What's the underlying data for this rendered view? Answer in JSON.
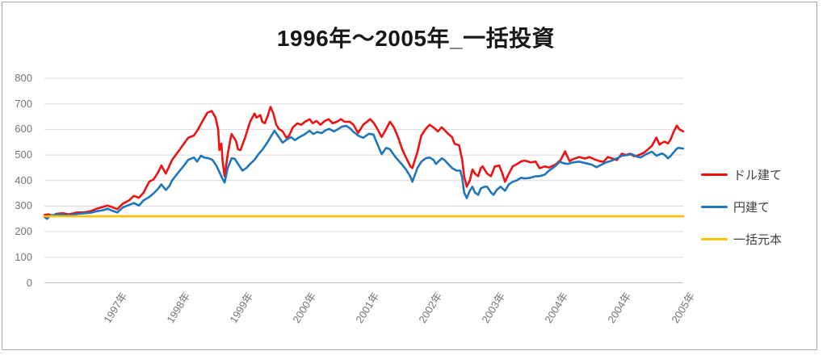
{
  "title": "1996年〜2005年_一括投資",
  "colors": {
    "grid": "#d9d9d9",
    "axis": "#bfbfbf",
    "tick_text": "#757575",
    "title_text": "#171717",
    "legend_text": "#3f3f3f",
    "frame_border": "#a6a6a6",
    "series_dollar": "#ed1111",
    "series_yen": "#2076bc",
    "series_principal": "#ffc000"
  },
  "chart_data": {
    "type": "line",
    "title": "1996年〜2005年_一括投資",
    "xlabel": "",
    "ylabel": "",
    "ylim": [
      0,
      800
    ],
    "y_ticks": [
      800,
      700,
      600,
      500,
      400,
      300,
      200,
      100,
      0
    ],
    "x_tick_labels": [
      "1997年",
      "1998年",
      "1999年",
      "2000年",
      "2001年",
      "2002年",
      "2003年",
      "2004年",
      "2004年",
      "2005年"
    ],
    "x_tick_pos_pct": [
      11.1,
      21.0,
      30.8,
      40.7,
      50.6,
      60.4,
      70.3,
      80.2,
      90.0,
      100
    ],
    "grid": true,
    "legend_position": "right",
    "series": [
      {
        "key": "dollar",
        "name": "ドル建て",
        "color": "#ed1111",
        "points": [
          [
            0,
            265
          ],
          [
            0.6,
            268
          ],
          [
            1.3,
            262
          ],
          [
            1.9,
            270
          ],
          [
            2.9,
            272
          ],
          [
            3.8,
            268
          ],
          [
            5.1,
            275
          ],
          [
            6.3,
            276
          ],
          [
            7.2,
            280
          ],
          [
            8.2,
            290
          ],
          [
            9.2,
            297
          ],
          [
            9.9,
            302
          ],
          [
            10.6,
            296
          ],
          [
            11.4,
            288
          ],
          [
            12.3,
            310
          ],
          [
            13.3,
            323
          ],
          [
            14,
            340
          ],
          [
            14.8,
            333
          ],
          [
            15.5,
            352
          ],
          [
            16.4,
            395
          ],
          [
            17.1,
            405
          ],
          [
            17.8,
            432
          ],
          [
            18.3,
            459
          ],
          [
            19,
            427
          ],
          [
            20,
            481
          ],
          [
            21.2,
            522
          ],
          [
            22.5,
            567
          ],
          [
            23.4,
            576
          ],
          [
            24,
            598
          ],
          [
            24.7,
            630
          ],
          [
            25.5,
            665
          ],
          [
            26.2,
            672
          ],
          [
            26.8,
            646
          ],
          [
            27.2,
            598
          ],
          [
            27.4,
            519
          ],
          [
            27.7,
            544
          ],
          [
            27.9,
            474
          ],
          [
            28.2,
            417
          ],
          [
            28.7,
            503
          ],
          [
            29.1,
            560
          ],
          [
            29.3,
            582
          ],
          [
            30,
            554
          ],
          [
            30.3,
            522
          ],
          [
            30.7,
            519
          ],
          [
            31.4,
            567
          ],
          [
            32.2,
            630
          ],
          [
            32.9,
            662
          ],
          [
            33.2,
            646
          ],
          [
            33.8,
            656
          ],
          [
            34.1,
            630
          ],
          [
            34.5,
            624
          ],
          [
            35,
            656
          ],
          [
            35.4,
            688
          ],
          [
            35.8,
            665
          ],
          [
            36.3,
            618
          ],
          [
            36.7,
            602
          ],
          [
            37.3,
            592
          ],
          [
            37.9,
            567
          ],
          [
            38.3,
            576
          ],
          [
            38.9,
            608
          ],
          [
            39.6,
            624
          ],
          [
            40.2,
            618
          ],
          [
            40.8,
            630
          ],
          [
            41.5,
            640
          ],
          [
            42,
            624
          ],
          [
            42.6,
            633
          ],
          [
            43.2,
            618
          ],
          [
            43.9,
            633
          ],
          [
            44.5,
            640
          ],
          [
            45.1,
            624
          ],
          [
            45.8,
            630
          ],
          [
            46.4,
            640
          ],
          [
            47,
            630
          ],
          [
            47.8,
            630
          ],
          [
            48.4,
            618
          ],
          [
            49.1,
            586
          ],
          [
            49.9,
            618
          ],
          [
            51,
            640
          ],
          [
            51.6,
            624
          ],
          [
            52.2,
            598
          ],
          [
            52.8,
            570
          ],
          [
            53.5,
            602
          ],
          [
            54.1,
            630
          ],
          [
            54.7,
            608
          ],
          [
            55.4,
            567
          ],
          [
            56,
            522
          ],
          [
            56.6,
            490
          ],
          [
            57.3,
            455
          ],
          [
            57.6,
            449
          ],
          [
            58.4,
            512
          ],
          [
            59,
            576
          ],
          [
            59.7,
            602
          ],
          [
            60.3,
            618
          ],
          [
            60.9,
            608
          ],
          [
            61.6,
            592
          ],
          [
            62.2,
            608
          ],
          [
            62.6,
            598
          ],
          [
            63.2,
            583
          ],
          [
            63.8,
            570
          ],
          [
            64.2,
            544
          ],
          [
            64.9,
            538
          ],
          [
            65.4,
            481
          ],
          [
            65.7,
            417
          ],
          [
            66.1,
            376
          ],
          [
            66.6,
            401
          ],
          [
            67,
            443
          ],
          [
            67.4,
            427
          ],
          [
            67.9,
            417
          ],
          [
            68.3,
            449
          ],
          [
            68.6,
            455
          ],
          [
            69.3,
            427
          ],
          [
            69.9,
            417
          ],
          [
            70.5,
            455
          ],
          [
            71.2,
            459
          ],
          [
            71.7,
            427
          ],
          [
            72.1,
            395
          ],
          [
            72.7,
            427
          ],
          [
            73.3,
            455
          ],
          [
            74,
            465
          ],
          [
            74.6,
            474
          ],
          [
            75.2,
            478
          ],
          [
            76.1,
            471
          ],
          [
            76.9,
            474
          ],
          [
            77.5,
            448
          ],
          [
            78.3,
            455
          ],
          [
            79,
            451
          ],
          [
            80,
            462
          ],
          [
            80.8,
            480
          ],
          [
            81.5,
            514
          ],
          [
            82.2,
            476
          ],
          [
            82.8,
            484
          ],
          [
            83.7,
            492
          ],
          [
            84.6,
            486
          ],
          [
            85.3,
            492
          ],
          [
            86.2,
            482
          ],
          [
            86.9,
            476
          ],
          [
            87.5,
            473
          ],
          [
            88.2,
            492
          ],
          [
            88.9,
            486
          ],
          [
            89.6,
            480
          ],
          [
            90.4,
            505
          ],
          [
            91,
            500
          ],
          [
            91.7,
            505
          ],
          [
            92.3,
            495
          ],
          [
            92.9,
            498
          ],
          [
            93.8,
            508
          ],
          [
            94.4,
            520
          ],
          [
            95.1,
            536
          ],
          [
            95.8,
            568
          ],
          [
            96.3,
            540
          ],
          [
            96.7,
            548
          ],
          [
            97.1,
            552
          ],
          [
            97.6,
            545
          ],
          [
            98,
            560
          ],
          [
            98.5,
            590
          ],
          [
            99,
            615
          ],
          [
            99.4,
            600
          ],
          [
            100,
            592
          ]
        ]
      },
      {
        "key": "yen",
        "name": "円建て",
        "color": "#2076bc",
        "points": [
          [
            0,
            258
          ],
          [
            0.4,
            250
          ],
          [
            0.9,
            262
          ],
          [
            1.6,
            266
          ],
          [
            2.5,
            268
          ],
          [
            3.4,
            264
          ],
          [
            4.4,
            266
          ],
          [
            5.4,
            270
          ],
          [
            6.3,
            272
          ],
          [
            7.2,
            274
          ],
          [
            8.2,
            280
          ],
          [
            9.2,
            284
          ],
          [
            9.9,
            290
          ],
          [
            10.6,
            282
          ],
          [
            11.4,
            275
          ],
          [
            12.3,
            295
          ],
          [
            13.3,
            305
          ],
          [
            14,
            312
          ],
          [
            14.8,
            302
          ],
          [
            15.5,
            322
          ],
          [
            16.4,
            335
          ],
          [
            17.1,
            350
          ],
          [
            17.8,
            368
          ],
          [
            18.3,
            385
          ],
          [
            19,
            363
          ],
          [
            19.6,
            380
          ],
          [
            20,
            401
          ],
          [
            20.6,
            420
          ],
          [
            21.2,
            439
          ],
          [
            21.9,
            460
          ],
          [
            22.5,
            481
          ],
          [
            23.4,
            490
          ],
          [
            23.9,
            474
          ],
          [
            24.5,
            497
          ],
          [
            25,
            490
          ],
          [
            25.7,
            487
          ],
          [
            26.3,
            481
          ],
          [
            26.9,
            459
          ],
          [
            27.4,
            433
          ],
          [
            27.8,
            411
          ],
          [
            28.2,
            392
          ],
          [
            28.7,
            449
          ],
          [
            29.3,
            487
          ],
          [
            29.8,
            485
          ],
          [
            30.3,
            465
          ],
          [
            31,
            439
          ],
          [
            31.6,
            449
          ],
          [
            32.2,
            465
          ],
          [
            32.9,
            481
          ],
          [
            33.5,
            503
          ],
          [
            34.1,
            520
          ],
          [
            34.8,
            545
          ],
          [
            35.4,
            570
          ],
          [
            36,
            595
          ],
          [
            36.7,
            570
          ],
          [
            37.3,
            548
          ],
          [
            37.9,
            560
          ],
          [
            38.6,
            570
          ],
          [
            39.2,
            558
          ],
          [
            39.8,
            568
          ],
          [
            40.7,
            580
          ],
          [
            41.5,
            595
          ],
          [
            42.1,
            582
          ],
          [
            42.7,
            590
          ],
          [
            43.4,
            585
          ],
          [
            44,
            596
          ],
          [
            44.6,
            602
          ],
          [
            45.3,
            592
          ],
          [
            45.9,
            600
          ],
          [
            46.5,
            610
          ],
          [
            47.2,
            614
          ],
          [
            47.8,
            605
          ],
          [
            48.3,
            592
          ],
          [
            49.1,
            576
          ],
          [
            49.9,
            567
          ],
          [
            50.8,
            583
          ],
          [
            51.5,
            580
          ],
          [
            52.1,
            544
          ],
          [
            52.8,
            503
          ],
          [
            53.5,
            528
          ],
          [
            54.1,
            522
          ],
          [
            55,
            490
          ],
          [
            55.9,
            465
          ],
          [
            56.6,
            443
          ],
          [
            57.3,
            415
          ],
          [
            57.6,
            395
          ],
          [
            58.4,
            449
          ],
          [
            59,
            474
          ],
          [
            59.7,
            487
          ],
          [
            60.3,
            490
          ],
          [
            60.9,
            481
          ],
          [
            61.3,
            465
          ],
          [
            62.2,
            487
          ],
          [
            62.6,
            481
          ],
          [
            63.2,
            465
          ],
          [
            63.8,
            449
          ],
          [
            64.5,
            439
          ],
          [
            65.1,
            439
          ],
          [
            65.4,
            411
          ],
          [
            65.7,
            353
          ],
          [
            66.1,
            331
          ],
          [
            66.6,
            360
          ],
          [
            67,
            376
          ],
          [
            67.4,
            353
          ],
          [
            67.9,
            344
          ],
          [
            68.3,
            369
          ],
          [
            68.9,
            376
          ],
          [
            69.3,
            376
          ],
          [
            69.9,
            353
          ],
          [
            70.3,
            344
          ],
          [
            70.8,
            363
          ],
          [
            71.4,
            376
          ],
          [
            72.1,
            360
          ],
          [
            72.7,
            385
          ],
          [
            73.3,
            395
          ],
          [
            74,
            401
          ],
          [
            74.6,
            411
          ],
          [
            75.2,
            408
          ],
          [
            76.1,
            411
          ],
          [
            76.9,
            417
          ],
          [
            77.5,
            417
          ],
          [
            78.3,
            423
          ],
          [
            79,
            439
          ],
          [
            79.9,
            455
          ],
          [
            80.7,
            474
          ],
          [
            81.2,
            468
          ],
          [
            81.9,
            465
          ],
          [
            82.8,
            471
          ],
          [
            83.7,
            474
          ],
          [
            84.7,
            468
          ],
          [
            85.7,
            462
          ],
          [
            86.4,
            452
          ],
          [
            87.2,
            462
          ],
          [
            87.9,
            471
          ],
          [
            88.6,
            476
          ],
          [
            89.1,
            481
          ],
          [
            89.9,
            490
          ],
          [
            90.4,
            497
          ],
          [
            91.3,
            500
          ],
          [
            92,
            503
          ],
          [
            92.7,
            494
          ],
          [
            93.3,
            490
          ],
          [
            94.2,
            503
          ],
          [
            95.1,
            513
          ],
          [
            95.8,
            497
          ],
          [
            96.3,
            502
          ],
          [
            96.7,
            506
          ],
          [
            97.1,
            500
          ],
          [
            97.6,
            487
          ],
          [
            98,
            495
          ],
          [
            98.5,
            510
          ],
          [
            98.9,
            522
          ],
          [
            99.2,
            528
          ],
          [
            100,
            525
          ]
        ]
      },
      {
        "key": "principal",
        "name": "一括元本",
        "color": "#ffc000",
        "points": [
          [
            0,
            260
          ],
          [
            100,
            260
          ]
        ]
      }
    ]
  }
}
